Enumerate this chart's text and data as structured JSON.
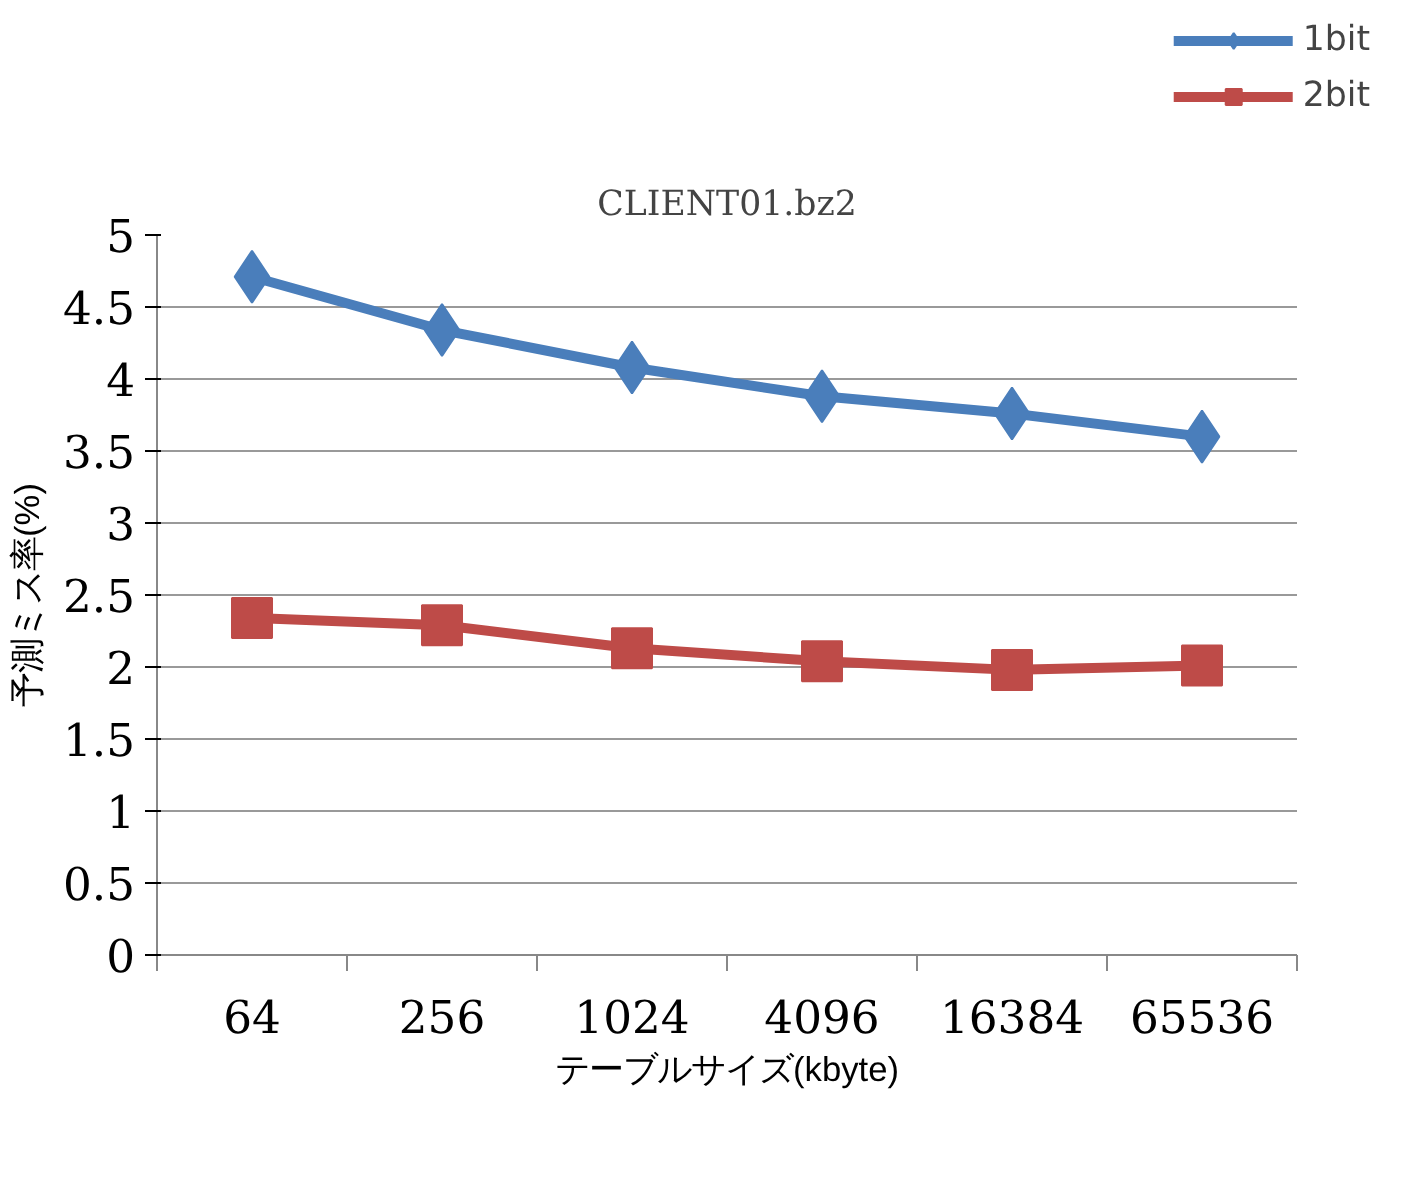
{
  "chart_data": {
    "type": "line",
    "title": "CLIENT01.bz2",
    "xlabel": "テーブルサイズ(kbyte)",
    "ylabel": "予測ミス率(%)",
    "categories": [
      "64",
      "256",
      "1024",
      "4096",
      "16384",
      "65536"
    ],
    "series": [
      {
        "name": "1bit",
        "color": "#4a7ebb",
        "marker": "diamond",
        "values": [
          4.71,
          4.34,
          4.08,
          3.88,
          3.76,
          3.6
        ]
      },
      {
        "name": "2bit",
        "color": "#be4b48",
        "marker": "square",
        "values": [
          2.34,
          2.29,
          2.13,
          2.04,
          1.98,
          2.01
        ]
      }
    ],
    "ylim": [
      0,
      5
    ],
    "yticks": [
      0,
      0.5,
      1,
      1.5,
      2,
      2.5,
      3,
      3.5,
      4,
      4.5,
      5
    ],
    "grid": "y",
    "legend": "top right",
    "line_style": "solid"
  }
}
